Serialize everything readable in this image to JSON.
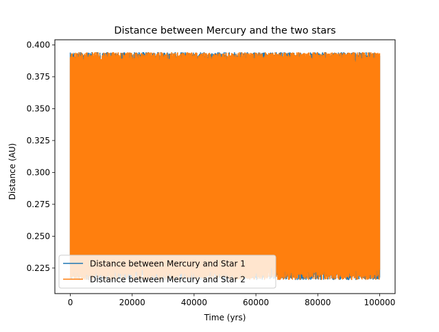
{
  "chart_data": {
    "type": "line",
    "title": "Distance between Mercury and the two stars",
    "xlabel": "Time (yrs)",
    "ylabel": "Distance (AU)",
    "xlim": [
      -5000,
      105000
    ],
    "ylim": [
      0.205,
      0.404
    ],
    "x_ticks": [
      0,
      20000,
      40000,
      60000,
      80000,
      100000
    ],
    "x_tick_labels": [
      "0",
      "20000",
      "40000",
      "60000",
      "80000",
      "100000"
    ],
    "y_ticks": [
      0.225,
      0.25,
      0.275,
      0.3,
      0.325,
      0.35,
      0.375,
      0.4
    ],
    "y_tick_labels": [
      "0.225",
      "0.250",
      "0.275",
      "0.300",
      "0.325",
      "0.350",
      "0.375",
      "0.400"
    ],
    "grid": false,
    "legend_position": "lower-left",
    "x_range": [
      0,
      100000
    ],
    "series": [
      {
        "name": "Distance between Mercury and Star 1",
        "color": "#1f77b4",
        "min_approx": 0.216,
        "max_approx": 0.394
      },
      {
        "name": "Distance between Mercury and Star 2",
        "color": "#ff7f0e",
        "min_approx": 0.216,
        "max_approx": 0.394
      }
    ]
  }
}
